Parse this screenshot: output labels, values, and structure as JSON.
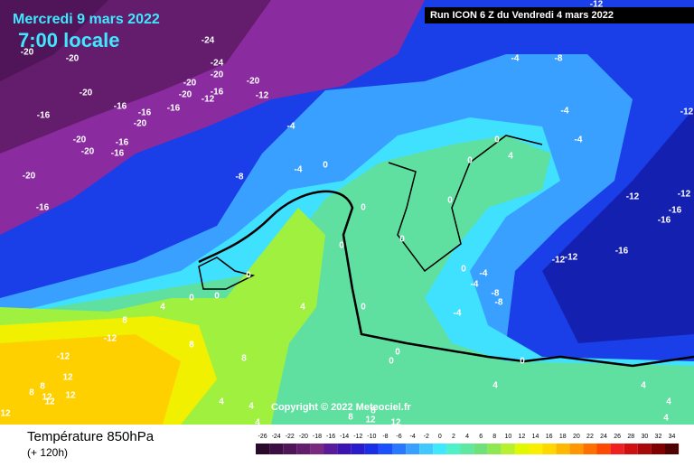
{
  "header": {
    "date": "Mercredi 9 mars 2022",
    "time": "7:00 locale",
    "run": "Run ICON 6 Z du Vendredi 4 mars 2022"
  },
  "copyright": "Copyright © 2022 Meteociel.fr",
  "footer": {
    "title": "Température 850hPa",
    "lead": "(+ 120h)"
  },
  "scale": {
    "labels": [
      -26,
      -24,
      -22,
      -20,
      -18,
      -16,
      -14,
      -12,
      -10,
      -8,
      -6,
      -4,
      -2,
      0,
      2,
      4,
      6,
      8,
      10,
      12,
      14,
      16,
      18,
      20,
      22,
      24,
      26,
      28,
      30,
      32,
      34
    ],
    "colors": [
      "#2a0a2a",
      "#3c0f44",
      "#501458",
      "#641c6c",
      "#782a80",
      "#5a1a9a",
      "#3c14b4",
      "#2a1ccc",
      "#1a2ee6",
      "#1a50ff",
      "#2a78ff",
      "#3aa0ff",
      "#40c8ff",
      "#40e8ff",
      "#50f0c8",
      "#60e8a0",
      "#70e078",
      "#90e850",
      "#b8f030",
      "#e0f800",
      "#f8f000",
      "#ffd800",
      "#ffb800",
      "#ff9800",
      "#ff7000",
      "#ff4800",
      "#f02020",
      "#d01010",
      "#a80808",
      "#800000",
      "#500000"
    ]
  },
  "map": {
    "labels": [
      -24,
      -20,
      -20,
      -24,
      -20,
      -20,
      -20,
      -16,
      -20,
      -20,
      -12,
      -12,
      -16,
      -16,
      -16,
      -16,
      -20,
      -20,
      -16,
      -20,
      -16,
      -20,
      -16,
      -8,
      -4,
      -4,
      0,
      -4,
      -8,
      -4,
      -4,
      -12,
      -12,
      0,
      4,
      0,
      -12,
      -12,
      -16,
      -16,
      -16,
      -12,
      -12,
      -4,
      -4,
      -8,
      -8,
      -4,
      0,
      0,
      0,
      0,
      0,
      0,
      0,
      0,
      0,
      0,
      0,
      0,
      4,
      4,
      8,
      -12,
      8,
      8,
      -12,
      8,
      8,
      12,
      12,
      12,
      12,
      4,
      4,
      4,
      4,
      4,
      4,
      12,
      12,
      12,
      4,
      8,
      8
    ]
  }
}
